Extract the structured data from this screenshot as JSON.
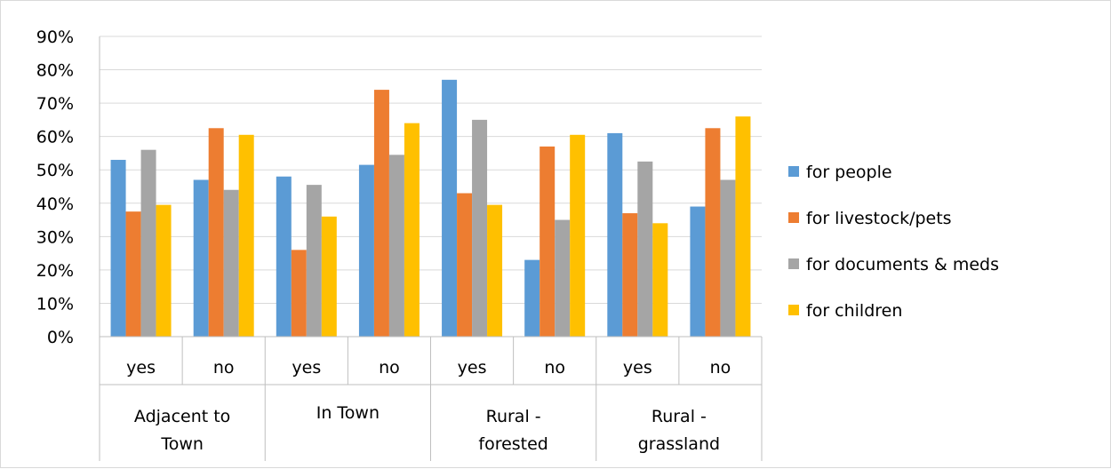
{
  "chart_data": {
    "type": "bar",
    "title": "",
    "xlabel": "",
    "ylabel": "",
    "ylim": [
      0,
      90
    ],
    "yticks": [
      "0%",
      "10%",
      "20%",
      "30%",
      "40%",
      "50%",
      "60%",
      "70%",
      "80%",
      "90%"
    ],
    "grid": true,
    "legend_position": "right",
    "groups": [
      {
        "label_lines": [
          "Adjacent to",
          "Town"
        ],
        "subcategories": [
          "yes",
          "no"
        ]
      },
      {
        "label_lines": [
          "In Town"
        ],
        "subcategories": [
          "yes",
          "no"
        ]
      },
      {
        "label_lines": [
          "Rural -",
          "forested"
        ],
        "subcategories": [
          "yes",
          "no"
        ]
      },
      {
        "label_lines": [
          "Rural -",
          "grassland"
        ],
        "subcategories": [
          "yes",
          "no"
        ]
      }
    ],
    "series": [
      {
        "name": "for people",
        "color": "#5b9bd5",
        "values": [
          53,
          47,
          48,
          51.5,
          77,
          23,
          61,
          39
        ]
      },
      {
        "name": "for livestock/pets",
        "color": "#ed7d31",
        "values": [
          37.5,
          62.5,
          26,
          74,
          43,
          57,
          37,
          62.5
        ]
      },
      {
        "name": "for documents & meds",
        "color": "#a5a5a5",
        "values": [
          56,
          44,
          45.5,
          54.5,
          65,
          35,
          52.5,
          47
        ]
      },
      {
        "name": "for children",
        "color": "#ffc000",
        "values": [
          39.5,
          60.5,
          36,
          64,
          39.5,
          60.5,
          34,
          66
        ]
      }
    ]
  }
}
